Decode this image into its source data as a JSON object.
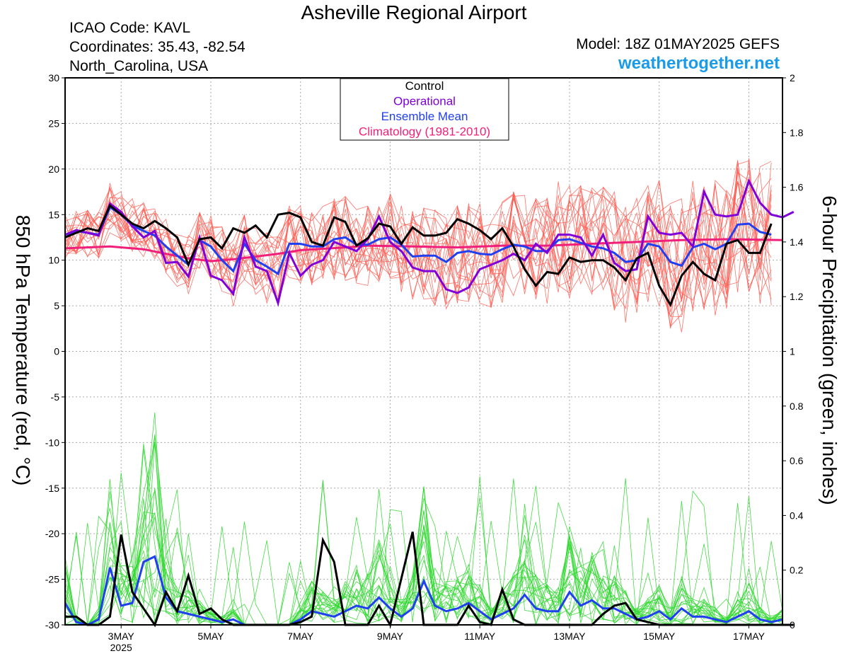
{
  "header": {
    "title": "Asheville Regional Airport",
    "icao": "ICAO Code: KAVL",
    "coordinates": "Coordinates: 35.43, -82.54",
    "region": "North_Carolina, USA",
    "model": "Model: 18Z 01MAY2025 GEFS",
    "site": "weathertogether.net"
  },
  "axes": {
    "left_label": "850 hPa Temperature (red, °C)",
    "right_label": "6-hour Precipitation (green, inches)"
  },
  "colors": {
    "control": "#000000",
    "operational": "#8000d8",
    "ensemble_mean": "#2040f0",
    "climatology": "#f0207a",
    "member_temperature": "#ff5a50",
    "member_precipitation": "#30d830",
    "site": "#1a9bea"
  },
  "chart_data": {
    "type": "line",
    "x_unit": "day of May 2025 (UTC)",
    "xlim": [
      1.75,
      17.75
    ],
    "x_ticks": [
      {
        "day": 3,
        "label": "3MAY",
        "sublabel": "2025"
      },
      {
        "day": 5,
        "label": "5MAY"
      },
      {
        "day": 7,
        "label": "7MAY"
      },
      {
        "day": 9,
        "label": "9MAY"
      },
      {
        "day": 11,
        "label": "11MAY"
      },
      {
        "day": 13,
        "label": "13MAY"
      },
      {
        "day": 15,
        "label": "15MAY"
      },
      {
        "day": 17,
        "label": "17MAY"
      }
    ],
    "y_left": {
      "label": "850 hPa Temperature (red, °C)",
      "range": [
        -30,
        30
      ],
      "ticks": [
        "30",
        "25",
        "20",
        "15",
        "10",
        "5",
        "0",
        "-5",
        "-10",
        "-15",
        "-20",
        "-25",
        "-30"
      ]
    },
    "y_right": {
      "label": "6-hour Precipitation (green, inches)",
      "range": [
        0,
        2
      ],
      "ticks": [
        "2",
        "1.8",
        "1.6",
        "1.4",
        "1.2",
        "1",
        "0.8",
        "0.6",
        "0.4",
        "0.2",
        "0"
      ]
    },
    "grid": true,
    "legend": {
      "placement": "top-center",
      "entries": [
        {
          "label": "Control",
          "color": "#000000"
        },
        {
          "label": "Operational",
          "color": "#8000d8"
        },
        {
          "label": "Ensemble Mean",
          "color": "#2040f0"
        },
        {
          "label": "Climatology (1981-2010)",
          "color": "#f0207a"
        }
      ]
    },
    "temperature": {
      "axis": "left",
      "x_start": 1.75,
      "x_step": 0.25,
      "control": [
        12.5,
        13,
        13.5,
        13.2,
        16,
        15,
        14,
        13.5,
        14.3,
        13.5,
        12.5,
        9.5,
        12.3,
        12.5,
        11.3,
        13.5,
        13,
        13.8,
        12.5,
        15,
        15.2,
        14.7,
        12,
        11.6,
        14.7,
        14.2,
        11.6,
        12.4,
        14,
        13.7,
        11.8,
        13.6,
        12.7,
        12.7,
        13,
        14.5,
        14,
        13.3,
        12.3,
        13.5,
        11.5,
        9,
        7.2,
        8.7,
        8.5,
        10.3,
        9.8,
        10,
        10,
        9.2,
        7.8,
        10.2,
        10.8,
        7.2,
        5.1,
        8.3,
        9.8,
        8.5,
        7.8,
        11.8,
        12.2,
        10.8,
        10.8,
        14
      ],
      "operational": [
        12.8,
        13.3,
        13,
        12.7,
        16.2,
        15.3,
        13.7,
        12.5,
        13.2,
        9.7,
        9.8,
        8.2,
        12.5,
        8.3,
        7.8,
        6.3,
        12.5,
        9.3,
        8.8,
        5.3,
        10.8,
        8.3,
        9.5,
        10,
        12,
        11.5,
        11,
        12.3,
        14.8,
        12,
        11,
        9.2,
        8.8,
        8.8,
        6.8,
        6.4,
        7,
        9,
        9.5,
        10,
        10.7,
        10,
        11.8,
        10.8,
        12.8,
        12.8,
        12.5,
        10.5,
        12.8,
        9.7,
        8.8,
        9,
        14.8,
        13,
        12.8,
        13,
        11.5,
        17.5,
        15,
        14.8,
        15,
        18.7,
        16.3,
        15,
        14.7,
        15.3
      ],
      "ensemble_mean": [
        12.5,
        13.2,
        13,
        12.8,
        15.8,
        15,
        13.8,
        13.2,
        12.7,
        11.5,
        10.5,
        9.5,
        12.2,
        11.5,
        10,
        8.8,
        11.8,
        10,
        9.3,
        8.5,
        11.8,
        11.8,
        11.5,
        11.5,
        12.3,
        12.5,
        11.7,
        11.7,
        12.3,
        12.5,
        11.7,
        10.4,
        10.5,
        10.5,
        9.8,
        10.8,
        11,
        10.7,
        10.6,
        11.2,
        11.7,
        11.5,
        11,
        11,
        12.2,
        12.3,
        11.9,
        11.5,
        11.3,
        10.8,
        9.8,
        10,
        11.8,
        11.5,
        9.8,
        9.4,
        11.4,
        11.8,
        11.2,
        11.8,
        13.9,
        14,
        13.1,
        12.8
      ],
      "climatology": [
        [
          1.75,
          11.3
        ],
        [
          2.25,
          11.4
        ],
        [
          2.75,
          11.5
        ],
        [
          3.5,
          11.2
        ],
        [
          4.5,
          10.2
        ],
        [
          5,
          9.9
        ],
        [
          5.5,
          10.1
        ],
        [
          6.5,
          10.7
        ],
        [
          7,
          11.1
        ],
        [
          8,
          11.4
        ],
        [
          8.5,
          11.6
        ],
        [
          9.5,
          11.5
        ],
        [
          10.5,
          11.4
        ],
        [
          11.5,
          11.6
        ],
        [
          12.5,
          11.6
        ],
        [
          13.5,
          11.8
        ],
        [
          14.5,
          12
        ],
        [
          15.5,
          12.2
        ],
        [
          16.5,
          12.3
        ],
        [
          17.75,
          12.2
        ]
      ]
    },
    "precipitation": {
      "axis": "right",
      "x_start": 1.75,
      "x_step": 0.25,
      "control": [
        0.03,
        0.03,
        0,
        0,
        0.03,
        0.33,
        0.12,
        0.06,
        0,
        0.12,
        0.05,
        0.18,
        0.04,
        0.06,
        0.02,
        0,
        0,
        0,
        0,
        0,
        0,
        0.01,
        0.03,
        0.31,
        0.23,
        0,
        0,
        0,
        0.07,
        0,
        0.17,
        0.34,
        0,
        0,
        0,
        0,
        0.07,
        0.01,
        0,
        0.13,
        0.02,
        0,
        0,
        0,
        0,
        0,
        0,
        0,
        0.04,
        0.07,
        0.08,
        0.02,
        0.01,
        0,
        0,
        0,
        0,
        0,
        0,
        0,
        0,
        0,
        0,
        0,
        0,
        0
      ],
      "ensemble_mean": [
        0.08,
        0.01,
        0,
        0.02,
        0.21,
        0.07,
        0.08,
        0.23,
        0.25,
        0.1,
        0.05,
        0.04,
        0.03,
        0.02,
        0.01,
        0.02,
        0,
        0,
        0,
        0,
        0,
        0.02,
        0.05,
        0.04,
        0.03,
        0.05,
        0.07,
        0.06,
        0.1,
        0.06,
        0.03,
        0.06,
        0.16,
        0.07,
        0.05,
        0.06,
        0.08,
        0.05,
        0.02,
        0.04,
        0.06,
        0.11,
        0.06,
        0.05,
        0.05,
        0.12,
        0.07,
        0.09,
        0.06,
        0.06,
        0.04,
        0.02,
        0.03,
        0.05,
        0.02,
        0.06,
        0.03,
        0.03,
        0.02,
        0.01,
        0.03,
        0.05,
        0.02,
        0.01,
        0.02
      ]
    }
  }
}
